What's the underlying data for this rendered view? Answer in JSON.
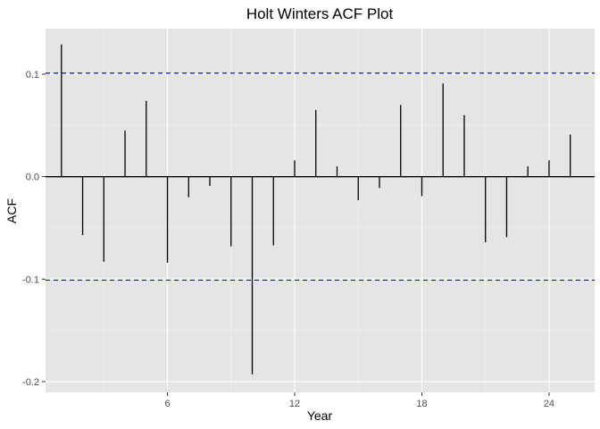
{
  "chart_data": {
    "type": "bar",
    "title": "Holt Winters ACF Plot",
    "xlabel": "Year",
    "ylabel": "ACF",
    "xlim": [
      0.25,
      26.15
    ],
    "ylim": [
      -0.2105,
      0.1445
    ],
    "x_ticks": [
      6,
      12,
      18,
      24
    ],
    "x_tick_labels": [
      "6",
      "12",
      "18",
      "24"
    ],
    "y_ticks": [
      -0.2,
      -0.1,
      0.0,
      0.1
    ],
    "y_tick_labels": [
      "-0.2",
      "-0.1",
      "0.0",
      "0.1"
    ],
    "confidence_bound": 0.101,
    "grid": true,
    "series": [
      {
        "x": [
          1,
          2,
          3,
          4,
          5,
          6,
          7,
          8,
          9,
          10,
          11,
          12,
          13,
          14,
          15,
          16,
          17,
          18,
          19,
          20,
          21,
          22,
          23,
          24,
          25
        ],
        "values": [
          0.129,
          -0.057,
          -0.083,
          0.045,
          0.074,
          -0.084,
          -0.02,
          -0.009,
          -0.068,
          -0.193,
          -0.067,
          0.016,
          0.065,
          0.01,
          -0.023,
          -0.011,
          0.07,
          -0.019,
          0.091,
          0.06,
          -0.064,
          -0.059,
          0.01,
          0.016,
          0.041
        ]
      }
    ],
    "colors": {
      "panel": "#e5e5e5",
      "grid": "#ffffff",
      "bars": "#000000",
      "bound": "#0000ff"
    }
  }
}
